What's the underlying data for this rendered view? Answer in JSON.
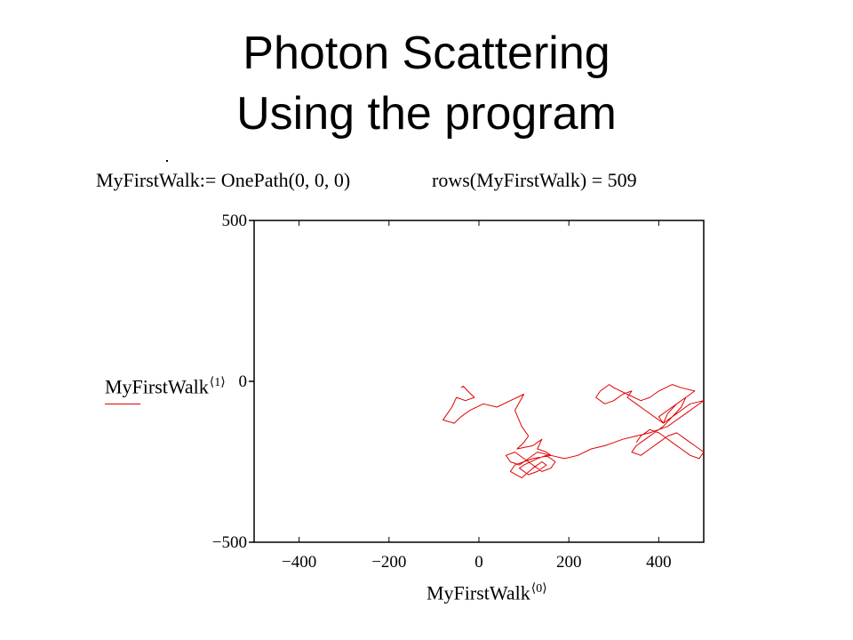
{
  "slide": {
    "title_line1": "Photon Scattering",
    "title_line2": "Using the program"
  },
  "math": {
    "definition": "MyFirstWalk:= OnePath(0, 0, 0)",
    "rows_expr": "rows(MyFirstWalk) = 509"
  },
  "chart_data": {
    "type": "line",
    "xlabel": "MyFirstWalk",
    "xlabel_superscript": "⟨0⟩",
    "ylabel": "MyFirstWalk",
    "ylabel_superscript": "⟨1⟩",
    "xlim": [
      -500,
      500
    ],
    "ylim": [
      -500,
      500
    ],
    "x_ticks": [
      -400,
      -200,
      0,
      200,
      400
    ],
    "x_tick_labels": [
      "−400",
      "−200",
      "0",
      "200",
      "400"
    ],
    "y_ticks": [
      -500,
      0,
      500
    ],
    "y_tick_labels": [
      "−500",
      "0",
      "500"
    ],
    "grid": false,
    "series_color": "#e00000",
    "series": [
      {
        "x": [
          -40,
          -35,
          -25,
          -10,
          -30,
          -50,
          -60,
          -70,
          -80,
          -55,
          -40,
          -20,
          10,
          40,
          70,
          100,
          80,
          95,
          110,
          100,
          85,
          120,
          140,
          130,
          150,
          160,
          120,
          100,
          80,
          70,
          95,
          120,
          140,
          150,
          130,
          110,
          90,
          100,
          130,
          150,
          170,
          160,
          140,
          120,
          100,
          80,
          60,
          70,
          90,
          110,
          130,
          160,
          190,
          220,
          250,
          280,
          300,
          320,
          350,
          380,
          400,
          420,
          440,
          460,
          480,
          500,
          470,
          450,
          430,
          410,
          420,
          440,
          460,
          480,
          450,
          430,
          400,
          380,
          360,
          330,
          300,
          290,
          270,
          260,
          280,
          300,
          320,
          340,
          330,
          350,
          370,
          390,
          410,
          400,
          420,
          440,
          460,
          450,
          430,
          410,
          390,
          370,
          350,
          340,
          360,
          380,
          400,
          420,
          440,
          460,
          480,
          500,
          490,
          470,
          450,
          430,
          410,
          400,
          380,
          360,
          350
        ],
        "y": [
          -20,
          -15,
          -30,
          -50,
          -60,
          -50,
          -80,
          -100,
          -120,
          -130,
          -110,
          -90,
          -70,
          -80,
          -60,
          -40,
          -90,
          -140,
          -170,
          -190,
          -210,
          -200,
          -180,
          -210,
          -220,
          -230,
          -240,
          -250,
          -260,
          -280,
          -300,
          -270,
          -250,
          -260,
          -280,
          -290,
          -270,
          -260,
          -240,
          -230,
          -250,
          -270,
          -280,
          -260,
          -240,
          -220,
          -230,
          -250,
          -260,
          -240,
          -220,
          -230,
          -240,
          -230,
          -210,
          -200,
          -190,
          -180,
          -170,
          -160,
          -150,
          -140,
          -120,
          -100,
          -80,
          -60,
          -70,
          -90,
          -110,
          -130,
          -100,
          -70,
          -50,
          -30,
          -20,
          -10,
          -30,
          -50,
          -60,
          -40,
          -20,
          -10,
          -30,
          -50,
          -70,
          -60,
          -40,
          -30,
          -50,
          -70,
          -90,
          -110,
          -130,
          -110,
          -90,
          -70,
          -50,
          -80,
          -110,
          -140,
          -160,
          -180,
          -200,
          -220,
          -230,
          -210,
          -190,
          -170,
          -160,
          -180,
          -200,
          -220,
          -240,
          -230,
          -210,
          -190,
          -170,
          -160,
          -150,
          -170,
          -190
        ]
      }
    ]
  }
}
